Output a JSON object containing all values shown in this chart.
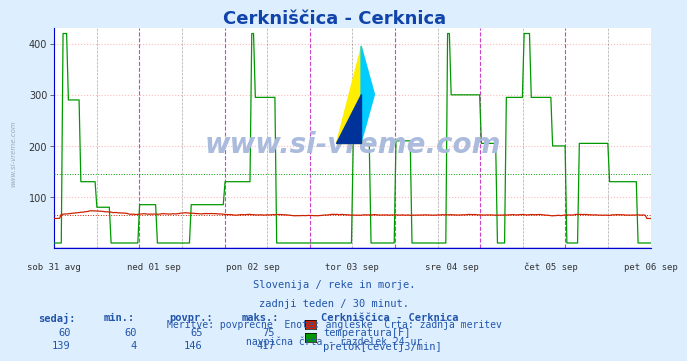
{
  "title": "Cerkniščica - Cerknica",
  "title_color": "#1144aa",
  "title_fontsize": 13,
  "bg_color": "#ddeeff",
  "plot_bg_color": "#ffffff",
  "ylim": [
    0,
    430
  ],
  "yticks": [
    100,
    200,
    300,
    400
  ],
  "xticklabels": [
    "sob 31 avg",
    "ned 01 sep",
    "pon 02 sep",
    "tor 03 sep",
    "sre 04 sep",
    "čet 05 sep",
    "pet 06 sep"
  ],
  "temp_color": "#cc2200",
  "flow_color": "#009900",
  "vline_major_color": "#cc44cc",
  "vline_minor_color": "#555555",
  "hgrid_color": "#ffbbbb",
  "vgrid_color": "#ffbbbb",
  "avg_temp": 65,
  "avg_flow": 146,
  "watermark": "www.si-vreme.com",
  "watermark_color": "#aabbdd",
  "subtitle1": "Slovenija / reke in morje.",
  "subtitle2": "zadnji teden / 30 minut.",
  "subtitle3": "Meritve: povprečne  Enote: angleške  Črta: zadnja meritev",
  "subtitle4": "navpična črta - razdelek 24 ur",
  "subtitle_color": "#2255aa",
  "table_color": "#2255aa",
  "legend_title": "Cerkniščica - Cerknica",
  "sedaj_temp": 60,
  "min_temp": 60,
  "povpr_temp": 65,
  "maks_temp": 75,
  "sedaj_flow": 139,
  "min_flow": 4,
  "povpr_flow": 146,
  "maks_flow": 417,
  "sidebar_color": "#99aabb",
  "axis_color": "#0000cc",
  "arrow_color": "#cc0000"
}
